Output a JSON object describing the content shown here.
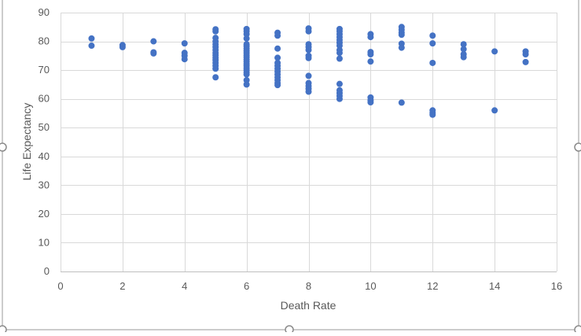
{
  "chart_data": {
    "type": "scatter",
    "xlabel": "Death Rate",
    "ylabel": "Life Expectancy",
    "xlim": [
      0,
      16
    ],
    "ylim": [
      0,
      90
    ],
    "xticks": [
      "0",
      "2",
      "4",
      "6",
      "8",
      "10",
      "12",
      "14",
      "16"
    ],
    "yticks": [
      "0",
      "10",
      "20",
      "30",
      "40",
      "50",
      "60",
      "70",
      "80",
      "90"
    ],
    "grid": true,
    "legend": "none",
    "marker_color": "#4472C4",
    "series": [
      {
        "points": [
          [
            1,
            81
          ],
          [
            1,
            78.5
          ],
          [
            2,
            78.7
          ],
          [
            2,
            78
          ],
          [
            3,
            80
          ],
          [
            3,
            76.2
          ],
          [
            3,
            75.8
          ],
          [
            4,
            79.3
          ],
          [
            4,
            76
          ],
          [
            4,
            75
          ],
          [
            4,
            73.8
          ],
          [
            5,
            84.2
          ],
          [
            5,
            83.5
          ],
          [
            5,
            81.2
          ],
          [
            5,
            80
          ],
          [
            5,
            79
          ],
          [
            5,
            78
          ],
          [
            5,
            77
          ],
          [
            5,
            76
          ],
          [
            5,
            75.2
          ],
          [
            5,
            74.3
          ],
          [
            5,
            73.5
          ],
          [
            5,
            72.5
          ],
          [
            5,
            71.5
          ],
          [
            5,
            70.5
          ],
          [
            5,
            67.5
          ],
          [
            6,
            84.3
          ],
          [
            6,
            83.5
          ],
          [
            6,
            82.5
          ],
          [
            6,
            81
          ],
          [
            6,
            79
          ],
          [
            6,
            78.3
          ],
          [
            6,
            77.5
          ],
          [
            6,
            76.7
          ],
          [
            6,
            76
          ],
          [
            6,
            75.2
          ],
          [
            6,
            74.5
          ],
          [
            6,
            73.7
          ],
          [
            6,
            73
          ],
          [
            6,
            72.2
          ],
          [
            6,
            71.5
          ],
          [
            6,
            70.7
          ],
          [
            6,
            70
          ],
          [
            6,
            69.2
          ],
          [
            6,
            68.5
          ],
          [
            6,
            66.5
          ],
          [
            6,
            65
          ],
          [
            7,
            83
          ],
          [
            7,
            82
          ],
          [
            7,
            77.5
          ],
          [
            7,
            74.3
          ],
          [
            7,
            72.5
          ],
          [
            7,
            71.5
          ],
          [
            7,
            70.5
          ],
          [
            7,
            69.5
          ],
          [
            7,
            68.5
          ],
          [
            7,
            67.5
          ],
          [
            7,
            66.5
          ],
          [
            7,
            65.5
          ],
          [
            7,
            64.8
          ],
          [
            8,
            84.5
          ],
          [
            8,
            83.5
          ],
          [
            8,
            79
          ],
          [
            8,
            78
          ],
          [
            8,
            77
          ],
          [
            8,
            75
          ],
          [
            8,
            74.2
          ],
          [
            8,
            68
          ],
          [
            8,
            65.5
          ],
          [
            8,
            64.5
          ],
          [
            8,
            63.5
          ],
          [
            8,
            62.5
          ],
          [
            9,
            84.3
          ],
          [
            9,
            83.5
          ],
          [
            9,
            82.5
          ],
          [
            9,
            81.5
          ],
          [
            9,
            80.5
          ],
          [
            9,
            79.5
          ],
          [
            9,
            78.5
          ],
          [
            9,
            77
          ],
          [
            9,
            76
          ],
          [
            9,
            74
          ],
          [
            9,
            65.2
          ],
          [
            9,
            63
          ],
          [
            9,
            62
          ],
          [
            9,
            61
          ],
          [
            9,
            60
          ],
          [
            10,
            82.5
          ],
          [
            10,
            81.5
          ],
          [
            10,
            76.3
          ],
          [
            10,
            75.5
          ],
          [
            10,
            73
          ],
          [
            10,
            60.5
          ],
          [
            10,
            59.5
          ],
          [
            10,
            58.8
          ],
          [
            11,
            85
          ],
          [
            11,
            84
          ],
          [
            11,
            83
          ],
          [
            11,
            82.3
          ],
          [
            11,
            79.2
          ],
          [
            11,
            77.8
          ],
          [
            11,
            58.7
          ],
          [
            12,
            82
          ],
          [
            12,
            79.3
          ],
          [
            12,
            72.5
          ],
          [
            12,
            56
          ],
          [
            12,
            55.2
          ],
          [
            12,
            54.5
          ],
          [
            13,
            79
          ],
          [
            13,
            77.3
          ],
          [
            13,
            75.5
          ],
          [
            13,
            74.5
          ],
          [
            14,
            76.5
          ],
          [
            14,
            56
          ],
          [
            15,
            76.5
          ],
          [
            15,
            75.5
          ],
          [
            15,
            72.8
          ]
        ]
      }
    ]
  }
}
